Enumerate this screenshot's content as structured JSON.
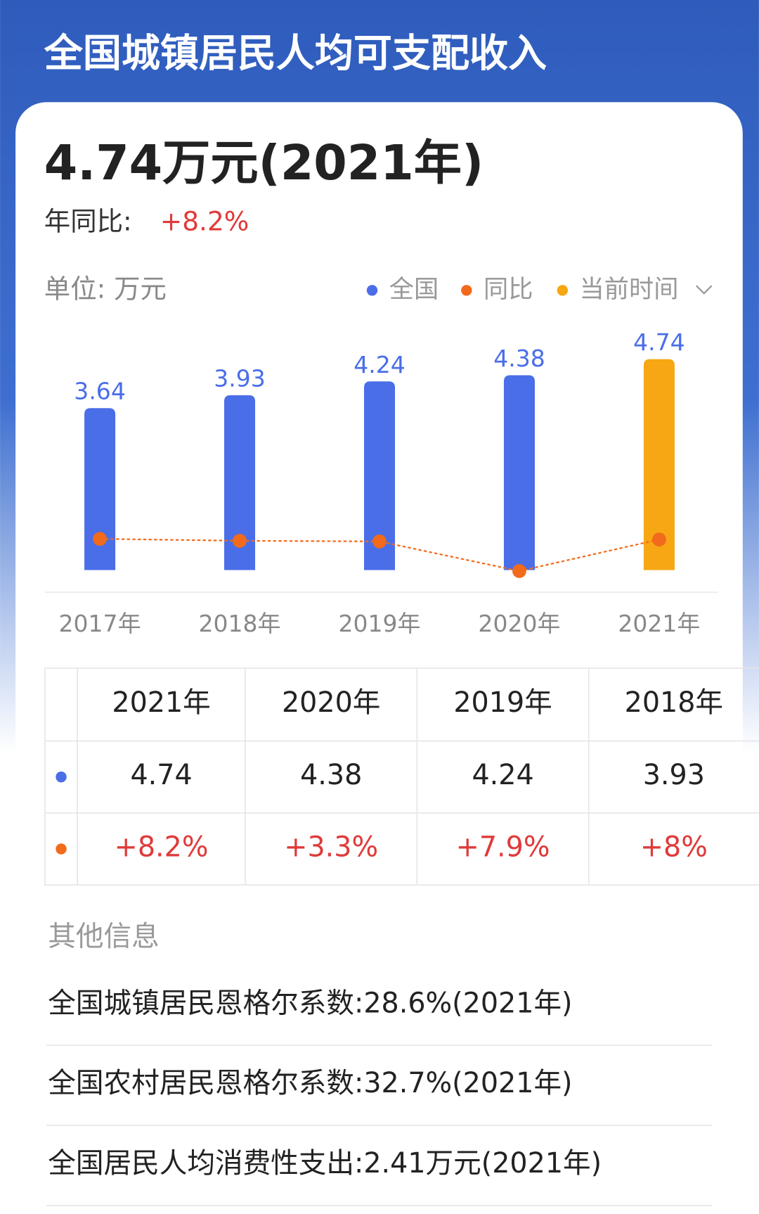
{
  "header": {
    "title": "全国城镇居民人均可支配收入"
  },
  "summary": {
    "value": "4.74万元(2021年)",
    "yoy_label": "年同比:",
    "yoy_value": "+8.2%"
  },
  "chart_data": {
    "type": "bar",
    "unit": "单位: 万元",
    "categories": [
      "2017年",
      "2018年",
      "2019年",
      "2020年",
      "2021年"
    ],
    "series": [
      {
        "name": "全国",
        "color": "#4a6ee8",
        "colors": [
          "#4a6ee8",
          "#4a6ee8",
          "#4a6ee8",
          "#4a6ee8",
          "#f7a713"
        ],
        "values": [
          3.64,
          3.93,
          4.24,
          4.38,
          4.74
        ]
      },
      {
        "name": "同比",
        "color": "#f26a1b",
        "axis": "y2",
        "values": [
          8.3,
          8,
          7.9,
          3.3,
          8.2
        ]
      }
    ],
    "current": {
      "name": "当前时间",
      "color": "#f7a713"
    },
    "ylim": [
      -0.5,
      5
    ],
    "y2lim": [
      0,
      38
    ]
  },
  "table": {
    "header": [
      "2021年",
      "2020年",
      "2019年",
      "2018年"
    ],
    "rows": [
      [
        "4.74",
        "4.38",
        "4.24",
        "3.93"
      ],
      [
        "+8.2%",
        "+3.3%",
        "+7.9%",
        "+8%"
      ]
    ]
  },
  "other_info": {
    "title": "其他信息",
    "items": [
      "全国城镇居民恩格尔系数:28.6%(2021年)",
      "全国农村居民恩格尔系数:32.7%(2021年)",
      "全国居民人均消费性支出:2.41万元(2021年)"
    ]
  }
}
